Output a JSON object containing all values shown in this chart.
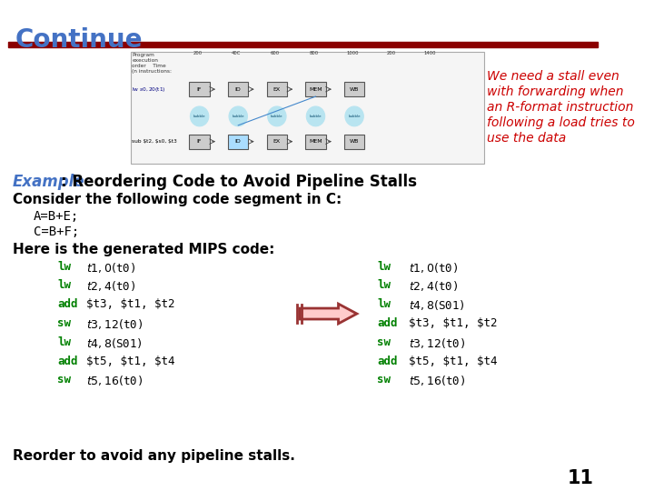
{
  "title": "Continue",
  "title_color": "#4472C4",
  "red_bar_color": "#8B0000",
  "background_color": "#FFFFFF",
  "slide_number": "11",
  "red_text_lines": [
    "We need a stall even",
    "with forwarding when",
    "an R-format instruction",
    "following a load tries to",
    "use the data"
  ],
  "red_text_color": "#CC0000",
  "example_label": "Example",
  "example_color": "#4472C4",
  "example_rest": ": Reordering Code to Avoid Pipeline Stalls",
  "consider_text": "Consider the following code segment in C:",
  "code_c": [
    "A=B+E;",
    "C=B+F;"
  ],
  "here_text": "Here is the generated MIPS code:",
  "reorder_text": "Reorder to avoid any pipeline stalls.",
  "left_code": [
    [
      "lw",
      "$t1, 0($t0)"
    ],
    [
      "lw",
      "$t2, 4($t0)"
    ],
    [
      "add",
      "$t3, $t1, $t2"
    ],
    [
      "sw",
      "$t3, 12($t0)"
    ],
    [
      "lw",
      "$t4, 8($S01)"
    ],
    [
      "add",
      "$t5, $t1, $t4"
    ],
    [
      "sw",
      "$t5, 16($t0)"
    ]
  ],
  "right_code": [
    [
      "lw",
      "$t1, 0($t0)"
    ],
    [
      "lw",
      "$t2, 4($t0)"
    ],
    [
      "lw",
      "$t4, 8($S01)"
    ],
    [
      "add",
      "$t3, $t1, $t2"
    ],
    [
      "sw",
      "$t3, 12($t0)"
    ],
    [
      "add",
      "$t5, $t1, $t4"
    ],
    [
      "sw",
      "$t5, 16($t0)"
    ]
  ],
  "keyword_color": "#008000",
  "diag_label_top": "Program\nexecution\norder    Time\n(n instructions:",
  "diag_lw_label": "lw $s0, 20($t1)",
  "diag_sub_label": "sub $t2, $s0, $t3",
  "time_labels": [
    "200",
    "40C",
    "600",
    "800",
    "1000",
    "200",
    "1400"
  ],
  "stages1": [
    "IF",
    "ID",
    "EX",
    "MEM",
    "WB"
  ],
  "stages2": [
    "IF",
    "ID",
    "EX",
    "MEM",
    "WB"
  ],
  "bubble_label": "bubble"
}
